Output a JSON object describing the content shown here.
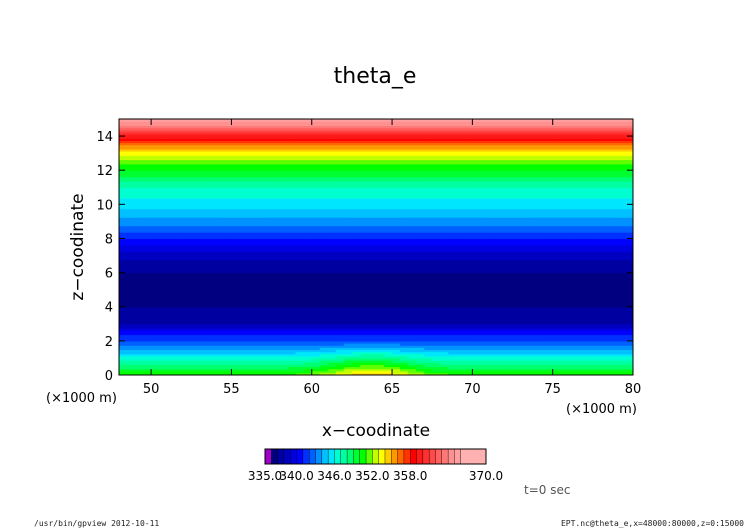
{
  "chart_data": {
    "type": "heatmap",
    "title": "theta_e",
    "xlabel": "x−coodinate",
    "ylabel": "z−coodinate",
    "x_unit": "(×1000 m)",
    "y_unit": "(×1000 m)",
    "xlim": [
      48,
      80
    ],
    "ylim": [
      0,
      15
    ],
    "x_ticks": [
      50,
      55,
      60,
      65,
      70,
      75,
      80
    ],
    "x_tick_labels": [
      "50",
      "55",
      "60",
      "65",
      "70",
      "75",
      "80"
    ],
    "y_ticks": [
      0,
      2,
      4,
      6,
      8,
      10,
      12,
      14
    ],
    "y_tick_labels": [
      "0",
      "2",
      "4",
      "6",
      "8",
      "10",
      "12",
      "14"
    ],
    "grid": false,
    "colorbar": {
      "min": 335.0,
      "max": 370.0,
      "step": 1.0,
      "tick_labels": [
        "335.0",
        "340.0",
        "346.0",
        "352.0",
        "358.0",
        "370.0"
      ],
      "colors": [
        "#a000c8",
        "#000080",
        "#0000a0",
        "#0000c0",
        "#0000e0",
        "#0000ff",
        "#0030ff",
        "#0060ff",
        "#0090ff",
        "#00c0ff",
        "#00e6ff",
        "#00ffd0",
        "#00ffa0",
        "#00ff70",
        "#00ff30",
        "#00ff00",
        "#60ff00",
        "#c0ff00",
        "#ffff00",
        "#ffcc00",
        "#ff9900",
        "#ff6600",
        "#ff3300",
        "#ff0000",
        "#ff1a1a",
        "#ff3030",
        "#ff4848",
        "#ff6060",
        "#ff7878",
        "#ff9090",
        "#ffa0a0",
        "#ffb0b0"
      ]
    },
    "profile": {
      "z": [
        0,
        0.5,
        1,
        1.5,
        2,
        2.5,
        3,
        3.5,
        4,
        4.5,
        5,
        5.5,
        6,
        6.5,
        7,
        7.5,
        8,
        8.5,
        9,
        9.5,
        10,
        10.5,
        11,
        11.5,
        12,
        12.5,
        13,
        13.5,
        14,
        14.5,
        15
      ],
      "theta_e": [
        351.0,
        348.5,
        346.3,
        344.0,
        342.0,
        340.5,
        338.0,
        337.5,
        337.0,
        336.8,
        336.5,
        336.6,
        337.0,
        337.5,
        338.5,
        339.5,
        341.0,
        342.3,
        343.5,
        344.5,
        345.5,
        346.2,
        347.0,
        348.5,
        350.0,
        351.5,
        353.5,
        356.0,
        359.5,
        363.0,
        366.0
      ]
    },
    "bump": {
      "x_center": 63.7,
      "x_halfwidth": 3.0,
      "z_top": 2.0,
      "amplitude": 4.0
    },
    "annotation": "t=0 sec"
  },
  "footer": {
    "left": "/usr/bin/gpview  2012-10-11",
    "right": "EPT.nc@theta_e,x=48000:80000,z=0:15000"
  }
}
